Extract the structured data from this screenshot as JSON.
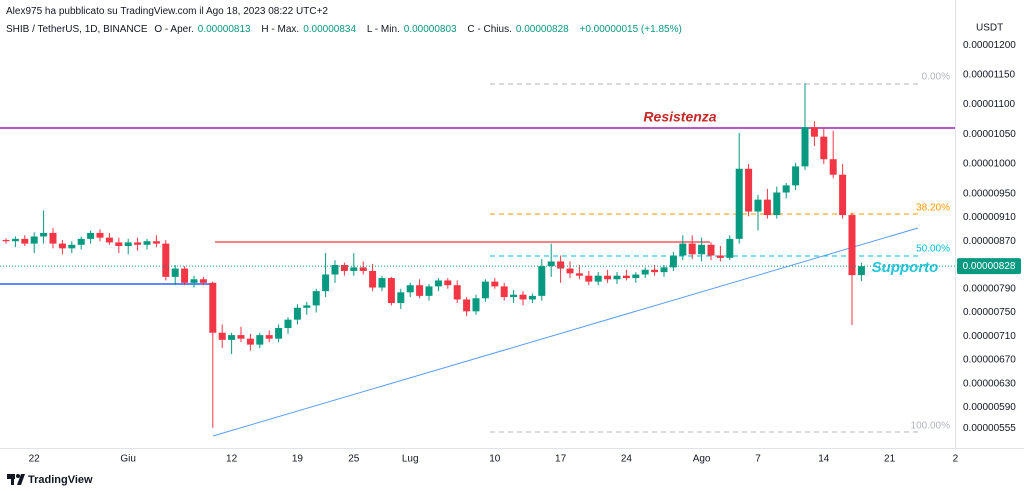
{
  "header": {
    "published": "Alex975 ha pubblicato su TradingView.com il Ago 18, 2023 08:22 UTC+2",
    "symbol": "SHIB / TetherUS, 1D, BINANCE",
    "fields": [
      {
        "label": "O - Aper.",
        "value": "0.00000813"
      },
      {
        "label": "H - Max.",
        "value": "0.00000834"
      },
      {
        "label": "L - Min.",
        "value": "0.00000803"
      },
      {
        "label": "C - Chius.",
        "value": "0.00000828"
      }
    ],
    "change": "+0.00000015 (+1.85%)"
  },
  "footer": "TradingView",
  "chart_data": {
    "type": "candlestick",
    "currency": "USDT",
    "up_color": "#089981",
    "down_color": "#f23645",
    "categories": [
      null,
      null,
      null,
      "22",
      null,
      null,
      null,
      null,
      null,
      null,
      null,
      null,
      null,
      "Giu",
      null,
      null,
      null,
      null,
      null,
      null,
      null,
      null,
      null,
      null,
      "12",
      null,
      null,
      null,
      null,
      null,
      null,
      "19",
      null,
      null,
      null,
      null,
      null,
      "25",
      null,
      null,
      null,
      null,
      null,
      "Lug",
      null,
      null,
      null,
      null,
      null,
      null,
      null,
      null,
      "10",
      null,
      null,
      null,
      null,
      null,
      null,
      "17",
      null,
      null,
      null,
      null,
      null,
      null,
      "24",
      null,
      null,
      null,
      null,
      null,
      null,
      null,
      "Ago",
      null,
      null,
      null,
      null,
      null,
      "7",
      null,
      null,
      null,
      null,
      null,
      null,
      "14",
      null,
      null,
      null,
      null,
      null,
      null,
      "21",
      null,
      null,
      null,
      null,
      null,
      null,
      "2"
    ],
    "open": [
      8.72e-06,
      8.7e-06,
      8.74e-06,
      8.66e-06,
      8.78e-06,
      8.84e-06,
      8.66e-06,
      8.58e-06,
      8.64e-06,
      8.74e-06,
      8.84e-06,
      8.76e-06,
      8.68e-06,
      8.62e-06,
      8.68e-06,
      8.64e-06,
      8.7e-06,
      8.66e-06,
      8.1e-06,
      8.24e-06,
      8e-06,
      8.06e-06,
      8e-06,
      7.16e-06,
      7.04e-06,
      7.12e-06,
      7.06e-06,
      6.96e-06,
      7.12e-06,
      7.06e-06,
      7.24e-06,
      7.38e-06,
      7.58e-06,
      7.62e-06,
      7.86e-06,
      8.14e-06,
      8.3e-06,
      8.2e-06,
      8.26e-06,
      8.2e-06,
      7.92e-06,
      8.08e-06,
      7.66e-06,
      7.84e-06,
      7.96e-06,
      7.78e-06,
      7.94e-06,
      8.04e-06,
      7.96e-06,
      7.72e-06,
      7.52e-06,
      7.74e-06,
      8.02e-06,
      7.94e-06,
      7.76e-06,
      7.8e-06,
      7.72e-06,
      7.78e-06,
      8.28e-06,
      8.36e-06,
      8.24e-06,
      8.16e-06,
      8.12e-06,
      8.02e-06,
      8.12e-06,
      8.06e-06,
      8.12e-06,
      8.08e-06,
      8.14e-06,
      8.22e-06,
      8.18e-06,
      8.26e-06,
      8.46e-06,
      8.66e-06,
      8.48e-06,
      8.64e-06,
      8.46e-06,
      8.42e-06,
      8.74e-06,
      9.92e-06,
      9.2e-06,
      9.4e-06,
      9.14e-06,
      9.52e-06,
      9.64e-06,
      9.96e-06,
      1.062e-05,
      1.046e-05,
      1.008e-05,
      9.82e-06,
      9.14e-06,
      8.13e-06,
      null,
      null,
      null,
      null,
      null,
      null,
      null,
      null,
      null,
      null
    ],
    "high": [
      8.75e-06,
      8.78e-06,
      8.8e-06,
      8.85e-06,
      9.22e-06,
      8.92e-06,
      8.72e-06,
      8.7e-06,
      8.78e-06,
      8.88e-06,
      8.9e-06,
      8.84e-06,
      8.76e-06,
      8.74e-06,
      8.76e-06,
      8.74e-06,
      8.8e-06,
      8.72e-06,
      8.3e-06,
      8.28e-06,
      8.12e-06,
      8.1e-06,
      8.02e-06,
      7.3e-06,
      7.16e-06,
      7.26e-06,
      7.14e-06,
      7.16e-06,
      7.2e-06,
      7.3e-06,
      7.42e-06,
      7.64e-06,
      7.68e-06,
      7.9e-06,
      8.5e-06,
      8.38e-06,
      8.34e-06,
      8.5e-06,
      8.36e-06,
      8.32e-06,
      8.12e-06,
      8.1e-06,
      7.9e-06,
      8e-06,
      8.06e-06,
      7.98e-06,
      8.08e-06,
      8.08e-06,
      8.04e-06,
      7.76e-06,
      7.8e-06,
      8.06e-06,
      8.08e-06,
      8e-06,
      7.88e-06,
      7.86e-06,
      7.82e-06,
      8.4e-06,
      8.66e-06,
      8.46e-06,
      8.36e-06,
      8.3e-06,
      8.2e-06,
      8.18e-06,
      8.22e-06,
      8.18e-06,
      8.22e-06,
      8.18e-06,
      8.26e-06,
      8.3e-06,
      8.3e-06,
      8.52e-06,
      8.8e-06,
      8.8e-06,
      8.76e-06,
      8.68e-06,
      8.62e-06,
      8.8e-06,
      1.052e-05,
      1e-05,
      9.48e-06,
      9.58e-06,
      9.62e-06,
      9.68e-06,
      1.002e-05,
      1.136e-05,
      1.072e-05,
      1.06e-05,
      1.056e-05,
      1e-05,
      9.18e-06,
      8.34e-06,
      null,
      null,
      null,
      null,
      null,
      null,
      null,
      null,
      null,
      null
    ],
    "low": [
      8.66e-06,
      8.6e-06,
      8.62e-06,
      8.5e-06,
      8.66e-06,
      8.58e-06,
      8.48e-06,
      8.5e-06,
      8.56e-06,
      8.66e-06,
      8.7e-06,
      8.64e-06,
      8.5e-06,
      8.48e-06,
      8.54e-06,
      8.56e-06,
      8.6e-06,
      8.04e-06,
      7.96e-06,
      7.96e-06,
      7.92e-06,
      7.96e-06,
      5.56e-06,
      6.9e-06,
      6.8e-06,
      7e-06,
      6.86e-06,
      6.9e-06,
      7e-06,
      7e-06,
      7.14e-06,
      7.3e-06,
      7.46e-06,
      7.5e-06,
      7.76e-06,
      8e-06,
      8.12e-06,
      8.12e-06,
      8.14e-06,
      7.86e-06,
      7.86e-06,
      7.62e-06,
      7.56e-06,
      7.76e-06,
      7.74e-06,
      7.7e-06,
      7.86e-06,
      7.9e-06,
      7.66e-06,
      7.44e-06,
      7.46e-06,
      7.68e-06,
      7.9e-06,
      7.7e-06,
      7.66e-06,
      7.62e-06,
      7.66e-06,
      7.7e-06,
      8.1e-06,
      8e-06,
      8.08e-06,
      8.06e-06,
      7.96e-06,
      7.96e-06,
      8e-06,
      7.98e-06,
      8.04e-06,
      8e-06,
      8.08e-06,
      8.12e-06,
      8.1e-06,
      8.2e-06,
      8.38e-06,
      8.4e-06,
      8.36e-06,
      8.38e-06,
      8.36e-06,
      8.38e-06,
      8.66e-06,
      9.12e-06,
      8.88e-06,
      9.08e-06,
      9.08e-06,
      9.42e-06,
      9.56e-06,
      9.9e-06,
      1.03e-05,
      1e-05,
      9.76e-06,
      9.08e-06,
      7.29e-06,
      8.03e-06,
      null,
      null,
      null,
      null,
      null,
      null,
      null,
      null,
      null,
      null
    ],
    "close": [
      8.7e-06,
      8.74e-06,
      8.66e-06,
      8.78e-06,
      8.84e-06,
      8.66e-06,
      8.58e-06,
      8.64e-06,
      8.74e-06,
      8.84e-06,
      8.76e-06,
      8.68e-06,
      8.62e-06,
      8.68e-06,
      8.64e-06,
      8.7e-06,
      8.66e-06,
      8.1e-06,
      8.24e-06,
      8e-06,
      8.06e-06,
      8e-06,
      7.16e-06,
      7.04e-06,
      7.12e-06,
      7.06e-06,
      6.96e-06,
      7.12e-06,
      7.06e-06,
      7.24e-06,
      7.38e-06,
      7.58e-06,
      7.62e-06,
      7.86e-06,
      8.14e-06,
      8.3e-06,
      8.2e-06,
      8.26e-06,
      8.2e-06,
      7.92e-06,
      8.08e-06,
      7.66e-06,
      7.84e-06,
      7.96e-06,
      7.78e-06,
      7.94e-06,
      8.04e-06,
      7.96e-06,
      7.72e-06,
      7.52e-06,
      7.74e-06,
      8.02e-06,
      7.94e-06,
      7.76e-06,
      7.8e-06,
      7.72e-06,
      7.78e-06,
      8.28e-06,
      8.36e-06,
      8.24e-06,
      8.16e-06,
      8.12e-06,
      8.02e-06,
      8.12e-06,
      8.06e-06,
      8.12e-06,
      8.08e-06,
      8.14e-06,
      8.22e-06,
      8.18e-06,
      8.26e-06,
      8.46e-06,
      8.66e-06,
      8.48e-06,
      8.64e-06,
      8.46e-06,
      8.42e-06,
      8.74e-06,
      9.92e-06,
      9.2e-06,
      9.4e-06,
      9.14e-06,
      9.52e-06,
      9.64e-06,
      9.96e-06,
      1.062e-05,
      1.046e-05,
      1.008e-05,
      9.82e-06,
      9.14e-06,
      8.13e-06,
      8.28e-06,
      null,
      null,
      null,
      null,
      null,
      null,
      null,
      null,
      null,
      null
    ],
    "ylim": [
      5.22e-06,
      1.276e-05
    ],
    "yticks": [
      {
        "value": 1.2e-05,
        "label": "0.00001200"
      },
      {
        "value": 1.15e-05,
        "label": "0.00001150"
      },
      {
        "value": 1.1e-05,
        "label": "0.00001100"
      },
      {
        "value": 1.05e-05,
        "label": "0.00001050"
      },
      {
        "value": 1e-05,
        "label": "0.00001000"
      },
      {
        "value": 9.5e-06,
        "label": "0.00000950"
      },
      {
        "value": 9.1e-06,
        "label": "0.00000910"
      },
      {
        "value": 8.7e-06,
        "label": "0.00000870"
      },
      {
        "value": 7.9e-06,
        "label": "0.00000790"
      },
      {
        "value": 7.5e-06,
        "label": "0.00000750"
      },
      {
        "value": 7.1e-06,
        "label": "0.00000710"
      },
      {
        "value": 6.7e-06,
        "label": "0.00000670"
      },
      {
        "value": 6.3e-06,
        "label": "0.00000630"
      },
      {
        "value": 5.9e-06,
        "label": "0.00000590"
      },
      {
        "value": 5.55e-06,
        "label": "0.00000555"
      }
    ],
    "last_price": {
      "value": 8.28e-06,
      "label": "0.00000828"
    },
    "annotations": {
      "resistance": "Resistenza",
      "support": "Supporto",
      "fib": [
        "0.00%",
        "38.20%",
        "50.00%",
        "100.00%"
      ]
    }
  }
}
